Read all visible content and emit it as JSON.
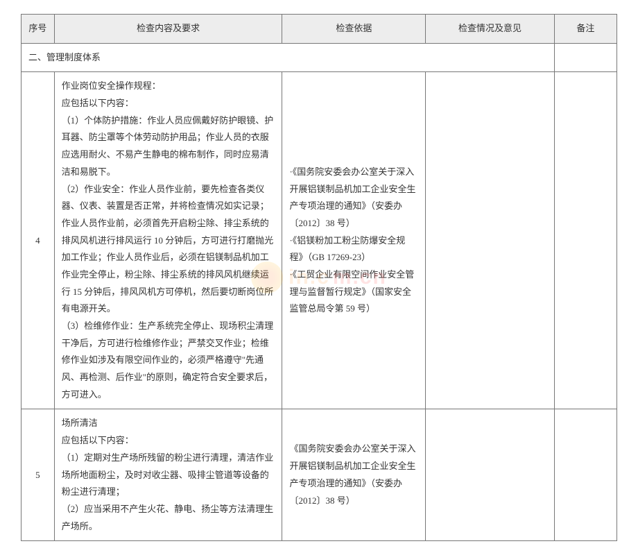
{
  "headers": {
    "seq": "序号",
    "content": "检查内容及要求",
    "basis": "检查依据",
    "opinion": "检查情况及意见",
    "note": "备注"
  },
  "section": "二、管理制度体系",
  "rows": [
    {
      "seq": "4",
      "content": "作业岗位安全操作规程：\n应包括以下内容：\n（1）个体防护措施：作业人员应佩戴好防护眼镜、护耳器、防尘罩等个体劳动防护用品；作业人员的衣服应选用耐火、不易产生静电的棉布制作，同时应易清洁和易脱下。\n（2）作业安全：作业人员作业前，要先检查各类仪器、仪表、装置是否正常，并将检查情况如实记录；作业人员作业前，必须首先开启粉尘除、排尘系统的排风风机进行排风运行 10 分钟后，方可进行打磨抛光加工作业；作业人员作业后，必须在铝镁制品机加工作业完全停止，粉尘除、排尘系统的排风风机继续运行 15 分钟后，排风风机方可停机，然后要切断岗位所有电源开关。\n（3）检维修作业：生产系统完全停止、现场积尘清理干净后，方可进行检维修作业；严禁交叉作业；检维修作业如涉及有限空间作业的，必须严格遵守\"先通风、再检测、后作业\"的原则，确定符合安全要求后，方可进入。",
      "basis": "·《国务院安委会办公室关于深入开展铝镁制品机加工企业安全生产专项治理的通知》（安委办〔2012〕38 号）\n·《铝镁粉加工粉尘防爆安全规程》（GB 17269-23）\n·《工贸企业有限空间作业安全管理与监督暂行规定》（国家安全监管总局令第 59 号）",
      "opinion": "",
      "note": ""
    },
    {
      "seq": "5",
      "content": "场所清洁\n应包括以下内容：\n（1）定期对生产场所残留的粉尘进行清理，清洁作业场所地面粉尘，及时对收尘器、吸排尘管道等设备的粉尘进行清理；\n（2）应当采用不产生火花、静电、扬尘等方法清理生产场所。",
      "basis": "《国务院安委会办公室关于深入开展铝镁制品机加工企业安全生产专项治理的通知》（安委办〔2012〕38 号）",
      "opinion": "",
      "note": ""
    }
  ],
  "watermark": {
    "text": "in.c",
    "suffix": "m.cn"
  }
}
